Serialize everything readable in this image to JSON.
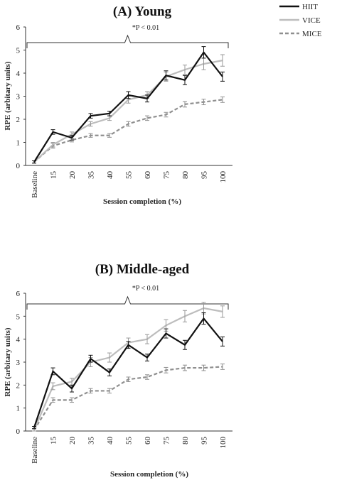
{
  "legend": [
    {
      "name": "HIIT",
      "color": "#111111",
      "dash": false
    },
    {
      "name": "VICE",
      "color": "#bdbdbd",
      "dash": false
    },
    {
      "name": "MICE",
      "color": "#8f8f8f",
      "dash": true
    }
  ],
  "chart_data": [
    {
      "type": "line",
      "title": "(A) Young",
      "xlabel": "Session completion (%)",
      "ylabel": "RPE (arbitary units)",
      "categories": [
        "Baseline",
        "15",
        "20",
        "35",
        "40",
        "55",
        "60",
        "75",
        "80",
        "95",
        "100"
      ],
      "ylim": [
        0,
        6
      ],
      "yticks": [
        0,
        1,
        2,
        3,
        4,
        5,
        6
      ],
      "annotation": "*P < 0.01",
      "series": [
        {
          "name": "HIIT",
          "values": [
            0.15,
            1.45,
            1.2,
            2.15,
            2.25,
            3.05,
            2.9,
            3.9,
            3.7,
            4.9,
            3.85
          ],
          "errors": [
            0.05,
            0.1,
            0.1,
            0.1,
            0.1,
            0.15,
            0.15,
            0.2,
            0.2,
            0.25,
            0.2
          ]
        },
        {
          "name": "VICE",
          "values": [
            0.15,
            0.9,
            1.35,
            1.8,
            2.05,
            2.85,
            3.05,
            3.85,
            4.15,
            4.4,
            4.55
          ],
          "errors": [
            0.05,
            0.1,
            0.1,
            0.1,
            0.1,
            0.15,
            0.15,
            0.2,
            0.2,
            0.25,
            0.25
          ]
        },
        {
          "name": "MICE",
          "values": [
            0.15,
            0.85,
            1.1,
            1.3,
            1.3,
            1.8,
            2.05,
            2.2,
            2.65,
            2.75,
            2.85
          ],
          "errors": [
            0.05,
            0.1,
            0.08,
            0.08,
            0.08,
            0.1,
            0.1,
            0.1,
            0.12,
            0.12,
            0.12
          ]
        }
      ]
    },
    {
      "type": "line",
      "title": "(B) Middle-aged",
      "xlabel": "Session completion (%)",
      "ylabel": "RPE (arbitary units)",
      "categories": [
        "Baseline",
        "15",
        "20",
        "35",
        "40",
        "55",
        "60",
        "75",
        "80",
        "95",
        "100"
      ],
      "ylim": [
        0,
        6
      ],
      "yticks": [
        0,
        1,
        2,
        3,
        4,
        5,
        6
      ],
      "annotation": "*P < 0.01",
      "series": [
        {
          "name": "HIIT",
          "values": [
            0.15,
            2.6,
            1.85,
            3.15,
            2.55,
            3.75,
            3.2,
            4.25,
            3.75,
            4.9,
            3.9
          ],
          "errors": [
            0.05,
            0.15,
            0.15,
            0.15,
            0.15,
            0.15,
            0.15,
            0.2,
            0.2,
            0.25,
            0.2
          ]
        },
        {
          "name": "VICE",
          "values": [
            0.05,
            1.95,
            2.15,
            3.0,
            3.2,
            3.85,
            4.0,
            4.6,
            5.0,
            5.35,
            5.2
          ],
          "errors": [
            0.05,
            0.15,
            0.15,
            0.2,
            0.2,
            0.2,
            0.2,
            0.25,
            0.25,
            0.25,
            0.25
          ]
        },
        {
          "name": "MICE",
          "values": [
            0.05,
            1.35,
            1.35,
            1.75,
            1.75,
            2.25,
            2.35,
            2.65,
            2.75,
            2.75,
            2.8
          ],
          "errors": [
            0.05,
            0.1,
            0.1,
            0.1,
            0.1,
            0.1,
            0.1,
            0.12,
            0.12,
            0.12,
            0.12
          ]
        }
      ]
    }
  ]
}
